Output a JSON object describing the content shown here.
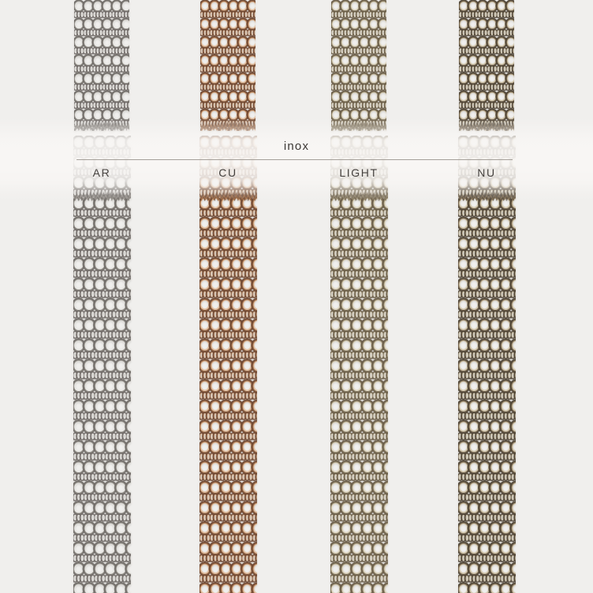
{
  "page": {
    "background_color": "#f0efed",
    "band_color": "#f8f6f4",
    "divider_color": "#969089",
    "text_color": "#3c3835"
  },
  "collection": {
    "title": "inox"
  },
  "samples": [
    {
      "label": "AR",
      "colors": {
        "dark": "#6f6a66",
        "mid": "#97928c",
        "light": "#eceae7"
      }
    },
    {
      "label": "CU",
      "colors": {
        "dark": "#6e4630",
        "mid": "#a06a42",
        "light": "#e5bd99"
      }
    },
    {
      "label": "LIGHT",
      "colors": {
        "dark": "#695c46",
        "mid": "#8f8266",
        "light": "#e0d6bd"
      }
    },
    {
      "label": "NU",
      "colors": {
        "dark": "#4e4334",
        "mid": "#7a684e",
        "light": "#d3c6a7"
      }
    }
  ]
}
